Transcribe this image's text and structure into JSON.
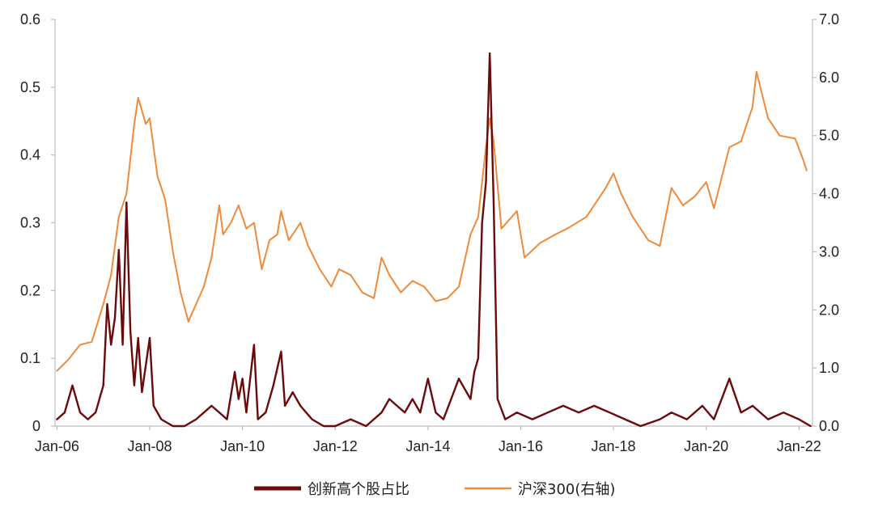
{
  "chart_data": {
    "type": "line",
    "title": "",
    "xlabel": "",
    "ylabel": "",
    "y2label": "",
    "x_range": [
      "2006-01",
      "2022-04"
    ],
    "x_tick_labels": [
      "Jan-06",
      "Jan-08",
      "Jan-10",
      "Jan-12",
      "Jan-14",
      "Jan-16",
      "Jan-18",
      "Jan-20",
      "Jan-22"
    ],
    "x_tick_dates": [
      "2006-01",
      "2008-01",
      "2010-01",
      "2012-01",
      "2014-01",
      "2016-01",
      "2018-01",
      "2020-01",
      "2022-01"
    ],
    "y_left": {
      "range": [
        0,
        0.6
      ],
      "tick_labels": [
        "0",
        "0.1",
        "0.2",
        "0.3",
        "0.4",
        "0.5",
        "0.6"
      ],
      "ticks": [
        0,
        0.1,
        0.2,
        0.3,
        0.4,
        0.5,
        0.6
      ]
    },
    "y_right": {
      "range": [
        0,
        7.0
      ],
      "tick_labels": [
        "0.0",
        "1.0",
        "2.0",
        "3.0",
        "4.0",
        "5.0",
        "6.0",
        "7.0"
      ],
      "ticks": [
        0,
        1,
        2,
        3,
        4,
        5,
        6,
        7
      ]
    },
    "grid": false,
    "legend_position": "bottom",
    "series": [
      {
        "name": "创新高个股占比",
        "axis": "left",
        "color": "#6b0a0a",
        "points": [
          [
            "2006-01",
            0.01
          ],
          [
            "2006-03",
            0.02
          ],
          [
            "2006-05",
            0.06
          ],
          [
            "2006-07",
            0.02
          ],
          [
            "2006-09",
            0.01
          ],
          [
            "2006-11",
            0.02
          ],
          [
            "2007-01",
            0.06
          ],
          [
            "2007-02",
            0.18
          ],
          [
            "2007-03",
            0.12
          ],
          [
            "2007-04",
            0.16
          ],
          [
            "2007-05",
            0.26
          ],
          [
            "2007-06",
            0.12
          ],
          [
            "2007-07",
            0.33
          ],
          [
            "2007-08",
            0.14
          ],
          [
            "2007-09",
            0.06
          ],
          [
            "2007-10",
            0.13
          ],
          [
            "2007-11",
            0.05
          ],
          [
            "2007-12",
            0.09
          ],
          [
            "2008-01",
            0.13
          ],
          [
            "2008-02",
            0.03
          ],
          [
            "2008-04",
            0.01
          ],
          [
            "2008-07",
            0.0
          ],
          [
            "2008-10",
            0.0
          ],
          [
            "2009-01",
            0.01
          ],
          [
            "2009-03",
            0.02
          ],
          [
            "2009-05",
            0.03
          ],
          [
            "2009-07",
            0.02
          ],
          [
            "2009-09",
            0.01
          ],
          [
            "2009-11",
            0.08
          ],
          [
            "2009-12",
            0.04
          ],
          [
            "2010-01",
            0.07
          ],
          [
            "2010-02",
            0.02
          ],
          [
            "2010-04",
            0.12
          ],
          [
            "2010-05",
            0.01
          ],
          [
            "2010-07",
            0.02
          ],
          [
            "2010-09",
            0.06
          ],
          [
            "2010-11",
            0.11
          ],
          [
            "2010-12",
            0.03
          ],
          [
            "2011-02",
            0.05
          ],
          [
            "2011-04",
            0.03
          ],
          [
            "2011-07",
            0.01
          ],
          [
            "2011-10",
            0.0
          ],
          [
            "2012-01",
            0.0
          ],
          [
            "2012-05",
            0.01
          ],
          [
            "2012-09",
            0.0
          ],
          [
            "2013-01",
            0.02
          ],
          [
            "2013-03",
            0.04
          ],
          [
            "2013-05",
            0.03
          ],
          [
            "2013-07",
            0.02
          ],
          [
            "2013-09",
            0.04
          ],
          [
            "2013-11",
            0.02
          ],
          [
            "2014-01",
            0.07
          ],
          [
            "2014-03",
            0.02
          ],
          [
            "2014-05",
            0.01
          ],
          [
            "2014-07",
            0.04
          ],
          [
            "2014-09",
            0.07
          ],
          [
            "2014-11",
            0.05
          ],
          [
            "2014-12",
            0.04
          ],
          [
            "2015-01",
            0.08
          ],
          [
            "2015-02",
            0.1
          ],
          [
            "2015-03",
            0.3
          ],
          [
            "2015-04",
            0.36
          ],
          [
            "2015-05",
            0.55
          ],
          [
            "2015-06",
            0.33
          ],
          [
            "2015-07",
            0.04
          ],
          [
            "2015-09",
            0.01
          ],
          [
            "2015-12",
            0.02
          ],
          [
            "2016-04",
            0.01
          ],
          [
            "2016-08",
            0.02
          ],
          [
            "2016-12",
            0.03
          ],
          [
            "2017-04",
            0.02
          ],
          [
            "2017-08",
            0.03
          ],
          [
            "2017-12",
            0.02
          ],
          [
            "2018-04",
            0.01
          ],
          [
            "2018-08",
            0.0
          ],
          [
            "2019-01",
            0.01
          ],
          [
            "2019-04",
            0.02
          ],
          [
            "2019-08",
            0.01
          ],
          [
            "2019-12",
            0.03
          ],
          [
            "2020-03",
            0.01
          ],
          [
            "2020-07",
            0.07
          ],
          [
            "2020-10",
            0.02
          ],
          [
            "2021-01",
            0.03
          ],
          [
            "2021-05",
            0.01
          ],
          [
            "2021-09",
            0.02
          ],
          [
            "2022-01",
            0.01
          ],
          [
            "2022-04",
            0.0
          ]
        ]
      },
      {
        "name": "沪深300(右轴)",
        "axis": "right",
        "color": "#ee8a3c",
        "points": [
          [
            "2006-01",
            0.95
          ],
          [
            "2006-04",
            1.15
          ],
          [
            "2006-07",
            1.4
          ],
          [
            "2006-10",
            1.45
          ],
          [
            "2007-01",
            2.1
          ],
          [
            "2007-03",
            2.6
          ],
          [
            "2007-05",
            3.6
          ],
          [
            "2007-07",
            4.0
          ],
          [
            "2007-09",
            5.2
          ],
          [
            "2007-10",
            5.65
          ],
          [
            "2007-12",
            5.2
          ],
          [
            "2008-01",
            5.3
          ],
          [
            "2008-03",
            4.3
          ],
          [
            "2008-05",
            3.9
          ],
          [
            "2008-07",
            3.0
          ],
          [
            "2008-09",
            2.3
          ],
          [
            "2008-11",
            1.8
          ],
          [
            "2009-01",
            2.1
          ],
          [
            "2009-03",
            2.4
          ],
          [
            "2009-05",
            2.9
          ],
          [
            "2009-07",
            3.8
          ],
          [
            "2009-08",
            3.3
          ],
          [
            "2009-10",
            3.5
          ],
          [
            "2009-12",
            3.8
          ],
          [
            "2010-02",
            3.4
          ],
          [
            "2010-04",
            3.5
          ],
          [
            "2010-06",
            2.7
          ],
          [
            "2010-08",
            3.2
          ],
          [
            "2010-10",
            3.3
          ],
          [
            "2010-11",
            3.7
          ],
          [
            "2011-01",
            3.2
          ],
          [
            "2011-04",
            3.5
          ],
          [
            "2011-06",
            3.1
          ],
          [
            "2011-09",
            2.7
          ],
          [
            "2011-12",
            2.4
          ],
          [
            "2012-02",
            2.7
          ],
          [
            "2012-05",
            2.6
          ],
          [
            "2012-08",
            2.3
          ],
          [
            "2012-11",
            2.2
          ],
          [
            "2013-01",
            2.9
          ],
          [
            "2013-03",
            2.6
          ],
          [
            "2013-06",
            2.3
          ],
          [
            "2013-09",
            2.5
          ],
          [
            "2013-12",
            2.4
          ],
          [
            "2014-03",
            2.15
          ],
          [
            "2014-06",
            2.2
          ],
          [
            "2014-09",
            2.4
          ],
          [
            "2014-12",
            3.3
          ],
          [
            "2015-02",
            3.6
          ],
          [
            "2015-04",
            4.8
          ],
          [
            "2015-05",
            5.3
          ],
          [
            "2015-06",
            4.9
          ],
          [
            "2015-08",
            3.4
          ],
          [
            "2015-12",
            3.7
          ],
          [
            "2016-02",
            2.9
          ],
          [
            "2016-06",
            3.15
          ],
          [
            "2016-10",
            3.3
          ],
          [
            "2017-01",
            3.4
          ],
          [
            "2017-06",
            3.6
          ],
          [
            "2017-11",
            4.1
          ],
          [
            "2018-01",
            4.35
          ],
          [
            "2018-03",
            4.0
          ],
          [
            "2018-06",
            3.6
          ],
          [
            "2018-10",
            3.2
          ],
          [
            "2019-01",
            3.1
          ],
          [
            "2019-04",
            4.1
          ],
          [
            "2019-07",
            3.8
          ],
          [
            "2019-10",
            3.95
          ],
          [
            "2020-01",
            4.2
          ],
          [
            "2020-03",
            3.75
          ],
          [
            "2020-07",
            4.8
          ],
          [
            "2020-10",
            4.9
          ],
          [
            "2021-01",
            5.5
          ],
          [
            "2021-02",
            6.1
          ],
          [
            "2021-05",
            5.3
          ],
          [
            "2021-08",
            5.0
          ],
          [
            "2021-12",
            4.95
          ],
          [
            "2022-02",
            4.6
          ],
          [
            "2022-03",
            4.4
          ]
        ]
      }
    ]
  }
}
